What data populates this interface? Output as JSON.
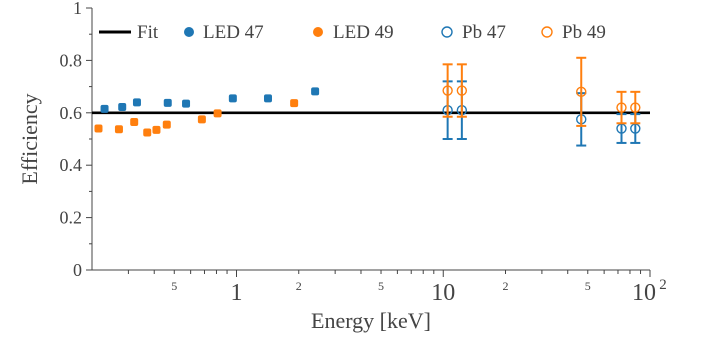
{
  "chart_data": {
    "type": "scatter",
    "title": "",
    "xlabel": "Energy [keV]",
    "ylabel": "Efficiency",
    "xscale": "log",
    "xlim": [
      0.2,
      100
    ],
    "ylim": [
      0,
      1
    ],
    "grid": false,
    "legend_position": "top",
    "y_ticks": [
      "0",
      "0.2",
      "0.4",
      "0.6",
      "0.8",
      "1"
    ],
    "x_major_ticks": [
      {
        "value": 1,
        "label": "1"
      },
      {
        "value": 10,
        "label": "10"
      },
      {
        "value": 100,
        "label": "10",
        "exponent": "2"
      }
    ],
    "x_minor_labels": [
      {
        "value": 0.5,
        "label": "5"
      },
      {
        "value": 2,
        "label": "2"
      },
      {
        "value": 5,
        "label": "5"
      },
      {
        "value": 20,
        "label": "2"
      },
      {
        "value": 50,
        "label": "5"
      }
    ],
    "fit": {
      "name": "Fit",
      "value": 0.6,
      "color": "#000000"
    },
    "series": [
      {
        "name": "LED 47",
        "style": "filled",
        "color": "#1f77b4",
        "points": [
          {
            "x": 0.23,
            "y": 0.615
          },
          {
            "x": 0.28,
            "y": 0.622
          },
          {
            "x": 0.33,
            "y": 0.64
          },
          {
            "x": 0.465,
            "y": 0.638
          },
          {
            "x": 0.57,
            "y": 0.635
          },
          {
            "x": 0.96,
            "y": 0.655
          },
          {
            "x": 1.42,
            "y": 0.655
          },
          {
            "x": 2.4,
            "y": 0.682
          }
        ]
      },
      {
        "name": "LED 49",
        "style": "filled",
        "color": "#ff7f0e",
        "points": [
          {
            "x": 0.215,
            "y": 0.54
          },
          {
            "x": 0.27,
            "y": 0.537
          },
          {
            "x": 0.32,
            "y": 0.565
          },
          {
            "x": 0.37,
            "y": 0.525
          },
          {
            "x": 0.41,
            "y": 0.535
          },
          {
            "x": 0.46,
            "y": 0.555
          },
          {
            "x": 0.68,
            "y": 0.575
          },
          {
            "x": 0.81,
            "y": 0.598
          },
          {
            "x": 1.9,
            "y": 0.637
          }
        ]
      },
      {
        "name": "Pb 47",
        "style": "open",
        "color": "#1f77b4",
        "points": [
          {
            "x": 10.5,
            "y": 0.61,
            "err": 0.11
          },
          {
            "x": 12.3,
            "y": 0.61,
            "err": 0.11
          },
          {
            "x": 46.5,
            "y": 0.575,
            "err": 0.1
          },
          {
            "x": 72.8,
            "y": 0.54,
            "err": 0.055
          },
          {
            "x": 84.9,
            "y": 0.54,
            "err": 0.055
          }
        ]
      },
      {
        "name": "Pb 49",
        "style": "open",
        "color": "#ff7f0e",
        "points": [
          {
            "x": 10.5,
            "y": 0.685,
            "err": 0.1
          },
          {
            "x": 12.3,
            "y": 0.685,
            "err": 0.1
          },
          {
            "x": 46.5,
            "y": 0.68,
            "err": 0.13
          },
          {
            "x": 72.8,
            "y": 0.62,
            "err": 0.06
          },
          {
            "x": 84.9,
            "y": 0.62,
            "err": 0.06
          }
        ]
      }
    ]
  }
}
